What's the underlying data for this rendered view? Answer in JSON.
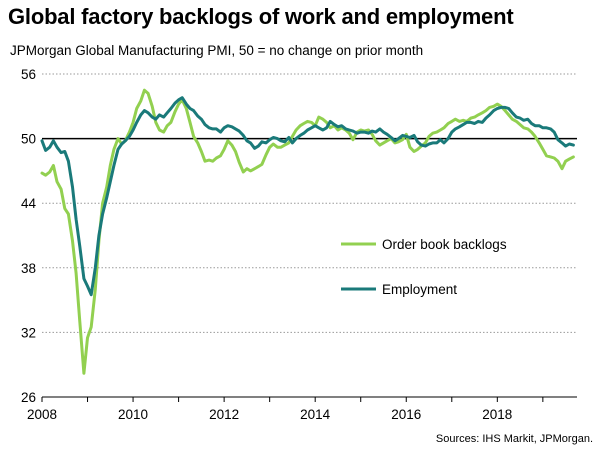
{
  "title": "Global factory backlogs of work and employment",
  "subtitle": "JPMorgan Global Manufacturing PMI, 50 = no change on prior month",
  "source": "Sources: IHS Markit, JPMorgan.",
  "chart_data": {
    "type": "line",
    "title": "Global factory backlogs of work and employment",
    "subtitle": "JPMorgan Global Manufacturing PMI, 50 = no change on prior month",
    "xlim": [
      2008,
      2019.75
    ],
    "ylim": [
      26,
      56
    ],
    "x_ticks": [
      2008,
      2010,
      2012,
      2014,
      2016,
      2018
    ],
    "y_ticks": [
      26,
      32,
      38,
      44,
      50,
      56
    ],
    "grid": "horizontal dotted",
    "reference_line": 50,
    "legend_position": "center-right",
    "series": [
      {
        "name": "Order book backlogs",
        "color": "#92d050",
        "points": [
          [
            2008.0,
            46.8
          ],
          [
            2008.08,
            46.6
          ],
          [
            2008.17,
            46.9
          ],
          [
            2008.25,
            47.5
          ],
          [
            2008.33,
            46.0
          ],
          [
            2008.42,
            45.3
          ],
          [
            2008.5,
            43.5
          ],
          [
            2008.58,
            43.0
          ],
          [
            2008.67,
            40.5
          ],
          [
            2008.75,
            37.5
          ],
          [
            2008.83,
            33.0
          ],
          [
            2008.92,
            28.2
          ],
          [
            2009.0,
            31.5
          ],
          [
            2009.08,
            32.5
          ],
          [
            2009.17,
            36.0
          ],
          [
            2009.25,
            40.5
          ],
          [
            2009.33,
            44.0
          ],
          [
            2009.42,
            45.5
          ],
          [
            2009.5,
            47.5
          ],
          [
            2009.58,
            49.0
          ],
          [
            2009.67,
            50.0
          ],
          [
            2009.75,
            49.5
          ],
          [
            2009.83,
            49.8
          ],
          [
            2009.92,
            50.6
          ],
          [
            2010.0,
            51.5
          ],
          [
            2010.08,
            52.8
          ],
          [
            2010.17,
            53.5
          ],
          [
            2010.25,
            54.5
          ],
          [
            2010.33,
            54.2
          ],
          [
            2010.42,
            53.0
          ],
          [
            2010.5,
            51.5
          ],
          [
            2010.58,
            50.8
          ],
          [
            2010.67,
            50.6
          ],
          [
            2010.75,
            51.2
          ],
          [
            2010.83,
            51.5
          ],
          [
            2010.92,
            52.5
          ],
          [
            2011.0,
            53.2
          ],
          [
            2011.08,
            53.6
          ],
          [
            2011.17,
            52.8
          ],
          [
            2011.25,
            51.5
          ],
          [
            2011.33,
            50.2
          ],
          [
            2011.42,
            49.6
          ],
          [
            2011.5,
            48.8
          ],
          [
            2011.58,
            47.9
          ],
          [
            2011.67,
            48.0
          ],
          [
            2011.75,
            47.9
          ],
          [
            2011.83,
            48.2
          ],
          [
            2011.92,
            48.4
          ],
          [
            2012.0,
            49.0
          ],
          [
            2012.08,
            49.8
          ],
          [
            2012.17,
            49.4
          ],
          [
            2012.25,
            48.8
          ],
          [
            2012.33,
            47.8
          ],
          [
            2012.42,
            46.9
          ],
          [
            2012.5,
            47.2
          ],
          [
            2012.58,
            47.0
          ],
          [
            2012.67,
            47.2
          ],
          [
            2012.75,
            47.4
          ],
          [
            2012.83,
            47.6
          ],
          [
            2012.92,
            48.5
          ],
          [
            2013.0,
            49.2
          ],
          [
            2013.08,
            49.5
          ],
          [
            2013.17,
            49.2
          ],
          [
            2013.25,
            49.2
          ],
          [
            2013.33,
            49.4
          ],
          [
            2013.42,
            49.6
          ],
          [
            2013.5,
            50.2
          ],
          [
            2013.58,
            50.8
          ],
          [
            2013.67,
            51.2
          ],
          [
            2013.75,
            51.4
          ],
          [
            2013.83,
            51.6
          ],
          [
            2013.92,
            51.5
          ],
          [
            2014.0,
            51.2
          ],
          [
            2014.08,
            52.0
          ],
          [
            2014.17,
            51.8
          ],
          [
            2014.25,
            51.5
          ],
          [
            2014.33,
            51.0
          ],
          [
            2014.42,
            51.2
          ],
          [
            2014.5,
            50.8
          ],
          [
            2014.58,
            51.0
          ],
          [
            2014.67,
            50.8
          ],
          [
            2014.75,
            50.5
          ],
          [
            2014.83,
            49.9
          ],
          [
            2014.92,
            50.6
          ],
          [
            2015.0,
            50.8
          ],
          [
            2015.08,
            50.7
          ],
          [
            2015.17,
            50.8
          ],
          [
            2015.25,
            50.4
          ],
          [
            2015.33,
            49.8
          ],
          [
            2015.42,
            49.4
          ],
          [
            2015.5,
            49.6
          ],
          [
            2015.58,
            49.8
          ],
          [
            2015.67,
            50.0
          ],
          [
            2015.75,
            49.6
          ],
          [
            2015.83,
            49.7
          ],
          [
            2015.92,
            49.9
          ],
          [
            2016.0,
            50.4
          ],
          [
            2016.08,
            49.2
          ],
          [
            2016.17,
            48.8
          ],
          [
            2016.25,
            49.0
          ],
          [
            2016.33,
            49.3
          ],
          [
            2016.42,
            49.6
          ],
          [
            2016.5,
            50.2
          ],
          [
            2016.58,
            50.5
          ],
          [
            2016.67,
            50.6
          ],
          [
            2016.75,
            50.8
          ],
          [
            2016.83,
            51.0
          ],
          [
            2016.92,
            51.4
          ],
          [
            2017.0,
            51.6
          ],
          [
            2017.08,
            51.8
          ],
          [
            2017.17,
            51.6
          ],
          [
            2017.25,
            51.7
          ],
          [
            2017.33,
            51.6
          ],
          [
            2017.42,
            51.9
          ],
          [
            2017.5,
            52.0
          ],
          [
            2017.58,
            52.2
          ],
          [
            2017.67,
            52.4
          ],
          [
            2017.75,
            52.6
          ],
          [
            2017.83,
            52.9
          ],
          [
            2017.92,
            53.0
          ],
          [
            2018.0,
            53.2
          ],
          [
            2018.08,
            53.0
          ],
          [
            2018.17,
            52.6
          ],
          [
            2018.25,
            52.2
          ],
          [
            2018.33,
            51.8
          ],
          [
            2018.42,
            51.6
          ],
          [
            2018.5,
            51.3
          ],
          [
            2018.58,
            51.0
          ],
          [
            2018.67,
            50.9
          ],
          [
            2018.75,
            50.6
          ],
          [
            2018.83,
            50.2
          ],
          [
            2018.92,
            49.6
          ],
          [
            2019.0,
            49.0
          ],
          [
            2019.08,
            48.4
          ],
          [
            2019.17,
            48.3
          ],
          [
            2019.25,
            48.2
          ],
          [
            2019.33,
            47.9
          ],
          [
            2019.42,
            47.2
          ],
          [
            2019.5,
            47.9
          ],
          [
            2019.58,
            48.1
          ],
          [
            2019.67,
            48.3
          ]
        ]
      },
      {
        "name": "Employment",
        "color": "#1a7a7a",
        "points": [
          [
            2008.0,
            49.8
          ],
          [
            2008.08,
            48.9
          ],
          [
            2008.17,
            49.2
          ],
          [
            2008.25,
            49.8
          ],
          [
            2008.33,
            49.2
          ],
          [
            2008.42,
            48.7
          ],
          [
            2008.5,
            48.8
          ],
          [
            2008.58,
            47.9
          ],
          [
            2008.67,
            45.5
          ],
          [
            2008.75,
            42.5
          ],
          [
            2008.83,
            40.0
          ],
          [
            2008.92,
            37.0
          ],
          [
            2009.0,
            36.3
          ],
          [
            2009.08,
            35.5
          ],
          [
            2009.17,
            38.0
          ],
          [
            2009.25,
            41.0
          ],
          [
            2009.33,
            43.0
          ],
          [
            2009.42,
            44.5
          ],
          [
            2009.5,
            46.0
          ],
          [
            2009.58,
            47.5
          ],
          [
            2009.67,
            49.0
          ],
          [
            2009.75,
            49.5
          ],
          [
            2009.83,
            49.8
          ],
          [
            2009.92,
            50.2
          ],
          [
            2010.0,
            50.8
          ],
          [
            2010.08,
            51.5
          ],
          [
            2010.17,
            52.2
          ],
          [
            2010.25,
            52.6
          ],
          [
            2010.33,
            52.4
          ],
          [
            2010.42,
            52.0
          ],
          [
            2010.5,
            51.8
          ],
          [
            2010.58,
            52.2
          ],
          [
            2010.67,
            52.0
          ],
          [
            2010.75,
            52.4
          ],
          [
            2010.83,
            52.8
          ],
          [
            2010.92,
            53.3
          ],
          [
            2011.0,
            53.6
          ],
          [
            2011.08,
            53.8
          ],
          [
            2011.17,
            53.2
          ],
          [
            2011.25,
            52.8
          ],
          [
            2011.33,
            52.6
          ],
          [
            2011.42,
            52.1
          ],
          [
            2011.5,
            51.8
          ],
          [
            2011.58,
            51.3
          ],
          [
            2011.67,
            51.0
          ],
          [
            2011.75,
            50.9
          ],
          [
            2011.83,
            50.9
          ],
          [
            2011.92,
            50.6
          ],
          [
            2012.0,
            51.0
          ],
          [
            2012.08,
            51.2
          ],
          [
            2012.17,
            51.1
          ],
          [
            2012.25,
            50.9
          ],
          [
            2012.33,
            50.7
          ],
          [
            2012.42,
            50.3
          ],
          [
            2012.5,
            49.8
          ],
          [
            2012.58,
            49.6
          ],
          [
            2012.67,
            49.1
          ],
          [
            2012.75,
            49.3
          ],
          [
            2012.83,
            49.7
          ],
          [
            2012.92,
            49.6
          ],
          [
            2013.0,
            49.9
          ],
          [
            2013.08,
            50.1
          ],
          [
            2013.17,
            50.0
          ],
          [
            2013.25,
            49.8
          ],
          [
            2013.33,
            49.7
          ],
          [
            2013.42,
            50.1
          ],
          [
            2013.5,
            49.6
          ],
          [
            2013.58,
            50.0
          ],
          [
            2013.67,
            50.3
          ],
          [
            2013.75,
            50.5
          ],
          [
            2013.83,
            50.8
          ],
          [
            2013.92,
            51.0
          ],
          [
            2014.0,
            51.2
          ],
          [
            2014.08,
            51.0
          ],
          [
            2014.17,
            50.8
          ],
          [
            2014.25,
            51.0
          ],
          [
            2014.33,
            51.6
          ],
          [
            2014.42,
            51.3
          ],
          [
            2014.5,
            51.1
          ],
          [
            2014.58,
            51.2
          ],
          [
            2014.67,
            50.9
          ],
          [
            2014.75,
            50.8
          ],
          [
            2014.83,
            50.7
          ],
          [
            2014.92,
            50.5
          ],
          [
            2015.0,
            50.6
          ],
          [
            2015.08,
            50.6
          ],
          [
            2015.17,
            50.5
          ],
          [
            2015.25,
            50.7
          ],
          [
            2015.33,
            50.6
          ],
          [
            2015.42,
            50.9
          ],
          [
            2015.5,
            50.6
          ],
          [
            2015.58,
            50.4
          ],
          [
            2015.67,
            50.1
          ],
          [
            2015.75,
            49.8
          ],
          [
            2015.83,
            50.0
          ],
          [
            2015.92,
            50.3
          ],
          [
            2016.0,
            50.2
          ],
          [
            2016.08,
            50.1
          ],
          [
            2016.17,
            50.3
          ],
          [
            2016.25,
            49.7
          ],
          [
            2016.33,
            49.4
          ],
          [
            2016.42,
            49.3
          ],
          [
            2016.5,
            49.5
          ],
          [
            2016.58,
            49.6
          ],
          [
            2016.67,
            49.6
          ],
          [
            2016.75,
            49.9
          ],
          [
            2016.83,
            49.6
          ],
          [
            2016.92,
            50.0
          ],
          [
            2017.0,
            50.6
          ],
          [
            2017.08,
            50.9
          ],
          [
            2017.17,
            51.1
          ],
          [
            2017.25,
            51.3
          ],
          [
            2017.33,
            51.5
          ],
          [
            2017.42,
            51.5
          ],
          [
            2017.5,
            51.4
          ],
          [
            2017.58,
            51.6
          ],
          [
            2017.67,
            51.5
          ],
          [
            2017.75,
            51.9
          ],
          [
            2017.83,
            52.2
          ],
          [
            2017.92,
            52.6
          ],
          [
            2018.0,
            52.8
          ],
          [
            2018.08,
            52.9
          ],
          [
            2018.17,
            52.9
          ],
          [
            2018.25,
            52.8
          ],
          [
            2018.33,
            52.4
          ],
          [
            2018.42,
            52.0
          ],
          [
            2018.5,
            51.9
          ],
          [
            2018.58,
            51.7
          ],
          [
            2018.67,
            51.8
          ],
          [
            2018.75,
            51.4
          ],
          [
            2018.83,
            51.2
          ],
          [
            2018.92,
            51.2
          ],
          [
            2019.0,
            51.0
          ],
          [
            2019.08,
            51.0
          ],
          [
            2019.17,
            50.9
          ],
          [
            2019.25,
            50.6
          ],
          [
            2019.33,
            49.9
          ],
          [
            2019.42,
            49.6
          ],
          [
            2019.5,
            49.3
          ],
          [
            2019.58,
            49.5
          ],
          [
            2019.67,
            49.4
          ]
        ]
      }
    ]
  }
}
